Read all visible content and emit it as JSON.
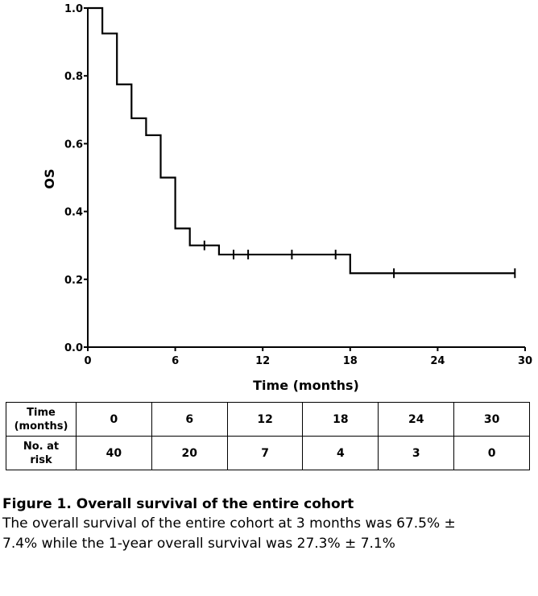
{
  "chart_data": {
    "type": "line",
    "subtype": "kaplan-meier",
    "ylabel": "OS",
    "xlabel": "Time (months)",
    "xlim": [
      0,
      30
    ],
    "ylim": [
      0.0,
      1.0
    ],
    "xticks": [
      0,
      6,
      12,
      18,
      24,
      30
    ],
    "yticks": [
      0.0,
      0.2,
      0.4,
      0.6,
      0.8,
      1.0
    ],
    "xtick_labels": [
      "0",
      "6",
      "12",
      "18",
      "24",
      "30"
    ],
    "ytick_labels": [
      "0.0",
      "0.2",
      "0.4",
      "0.6",
      "0.8",
      "1.0"
    ],
    "grid": false,
    "legend": "none",
    "line_color": "#000000",
    "steps": [
      {
        "x": 0,
        "y": 1.0
      },
      {
        "x": 1,
        "y": 0.925
      },
      {
        "x": 2,
        "y": 0.775
      },
      {
        "x": 3,
        "y": 0.675
      },
      {
        "x": 4,
        "y": 0.625
      },
      {
        "x": 5,
        "y": 0.5
      },
      {
        "x": 6,
        "y": 0.35
      },
      {
        "x": 7,
        "y": 0.3
      },
      {
        "x": 9,
        "y": 0.273
      },
      {
        "x": 18,
        "y": 0.218
      }
    ],
    "x_end": 29.3,
    "censored": [
      {
        "x": 8,
        "y": 0.3
      },
      {
        "x": 10,
        "y": 0.273
      },
      {
        "x": 11,
        "y": 0.273
      },
      {
        "x": 14,
        "y": 0.273
      },
      {
        "x": 17,
        "y": 0.273
      },
      {
        "x": 21,
        "y": 0.218
      },
      {
        "x": 29.3,
        "y": 0.218
      }
    ]
  },
  "risk_table": {
    "header_label_line1": "Time",
    "header_label_line2": "(months)",
    "risk_label_line1": "No. at",
    "risk_label_line2": "risk",
    "times": [
      "0",
      "6",
      "12",
      "18",
      "24",
      "30"
    ],
    "at_risk": [
      "40",
      "20",
      "7",
      "4",
      "3",
      "0"
    ]
  },
  "caption": {
    "title": "Figure 1.   Overall survival of the entire cohort",
    "line1": "The overall survival of the entire cohort at 3 months was 67.5% ±",
    "line2": "7.4% while the 1-year overall survival was 27.3% ± 7.1%"
  }
}
